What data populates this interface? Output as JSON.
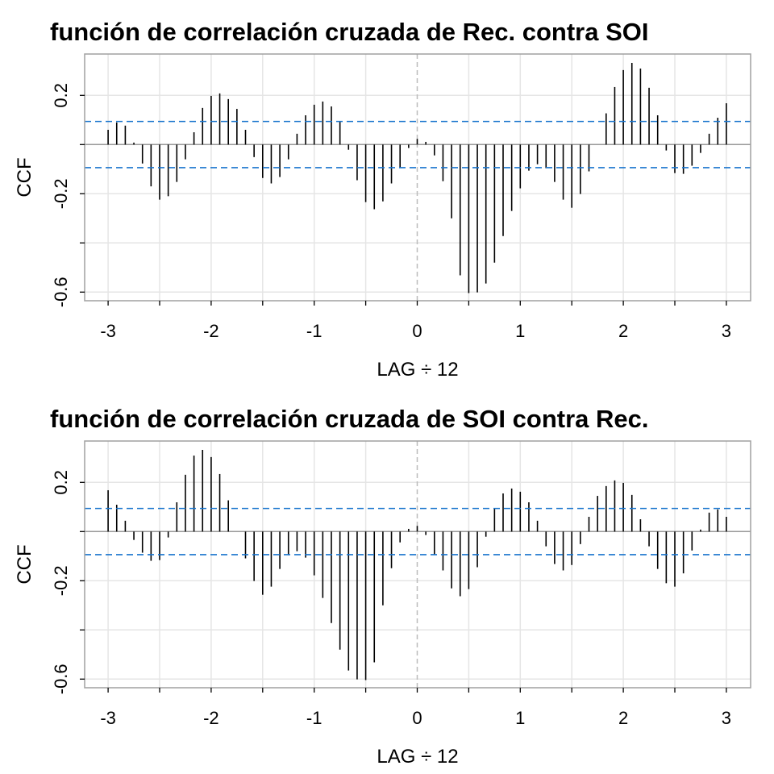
{
  "chart_data": [
    {
      "type": "bar",
      "title": "función de correlación cruzada de Rec. contra SOI",
      "xlabel": "LAG ÷ 12",
      "ylabel": "CCF",
      "xlim": [
        -3.25,
        3.25
      ],
      "ylim": [
        -0.64,
        0.36
      ],
      "xticks": [
        -3,
        -2,
        -1,
        0,
        1,
        2,
        3
      ],
      "xtick_labels": [
        "-3",
        "-2",
        "-1",
        "0",
        "1",
        "2",
        "3"
      ],
      "yticks": [
        0.2,
        -0.2,
        -0.6
      ],
      "ytick_labels": [
        "0.2",
        "-0.2",
        "-0.6"
      ],
      "grid": true,
      "confidence_bound": 0.094,
      "lag_start": -3,
      "lag_step": 0.08333,
      "values": [
        0.06,
        0.09,
        0.077,
        0.008,
        -0.077,
        -0.17,
        -0.224,
        -0.21,
        -0.152,
        -0.06,
        0.05,
        0.149,
        0.198,
        0.208,
        0.185,
        0.145,
        0.06,
        -0.051,
        -0.136,
        -0.158,
        -0.132,
        -0.06,
        0.044,
        0.119,
        0.162,
        0.175,
        0.155,
        0.093,
        -0.021,
        -0.145,
        -0.234,
        -0.263,
        -0.231,
        -0.158,
        -0.093,
        -0.014,
        0.023,
        0.011,
        -0.044,
        -0.149,
        -0.3,
        -0.532,
        -0.604,
        -0.601,
        -0.565,
        -0.48,
        -0.372,
        -0.27,
        -0.178,
        -0.106,
        -0.08,
        -0.096,
        -0.152,
        -0.224,
        -0.257,
        -0.201,
        -0.109,
        0.0,
        0.127,
        0.234,
        0.303,
        0.332,
        0.309,
        0.231,
        0.119,
        -0.024,
        -0.116,
        -0.119,
        -0.086,
        -0.034,
        0.044,
        0.109,
        0.168
      ]
    },
    {
      "type": "bar",
      "title": "función de correlación cruzada de SOI contra Rec.",
      "xlabel": "LAG ÷ 12",
      "ylabel": "CCF",
      "xlim": [
        -3.25,
        3.25
      ],
      "ylim": [
        -0.64,
        0.36
      ],
      "xticks": [
        -3,
        -2,
        -1,
        0,
        1,
        2,
        3
      ],
      "xtick_labels": [
        "-3",
        "-2",
        "-1",
        "0",
        "1",
        "2",
        "3"
      ],
      "yticks": [
        0.2,
        -0.2,
        -0.6
      ],
      "ytick_labels": [
        "0.2",
        "-0.2",
        "-0.6"
      ],
      "grid": true,
      "confidence_bound": 0.094,
      "lag_start": -3,
      "lag_step": 0.08333,
      "values": [
        0.168,
        0.109,
        0.044,
        -0.034,
        -0.086,
        -0.119,
        -0.116,
        -0.024,
        0.119,
        0.231,
        0.309,
        0.332,
        0.303,
        0.234,
        0.127,
        0.0,
        -0.109,
        -0.201,
        -0.257,
        -0.224,
        -0.152,
        -0.096,
        -0.08,
        -0.106,
        -0.178,
        -0.27,
        -0.372,
        -0.48,
        -0.565,
        -0.601,
        -0.604,
        -0.532,
        -0.3,
        -0.149,
        -0.044,
        0.011,
        0.023,
        -0.014,
        -0.093,
        -0.158,
        -0.231,
        -0.263,
        -0.234,
        -0.145,
        -0.021,
        0.093,
        0.155,
        0.175,
        0.162,
        0.119,
        0.044,
        -0.06,
        -0.132,
        -0.158,
        -0.136,
        -0.051,
        0.06,
        0.145,
        0.185,
        0.208,
        0.198,
        0.149,
        0.05,
        -0.06,
        -0.152,
        -0.21,
        -0.224,
        -0.17,
        -0.077,
        0.008,
        0.077,
        0.09,
        0.06
      ]
    }
  ],
  "colors": {
    "bars": "#000000",
    "bounds": "#1874CD",
    "grid": "#E5E5E5",
    "zero": "#999999",
    "border": "#A0A0A0"
  }
}
